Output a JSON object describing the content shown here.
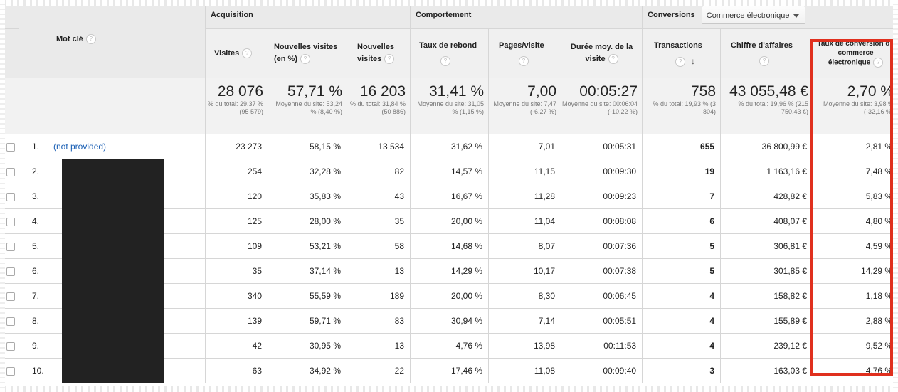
{
  "header": {
    "keyword": "Mot clé",
    "group_acquisition": "Acquisition",
    "group_behavior": "Comportement",
    "group_conversions": "Conversions",
    "conversion_select": "Commerce électronique",
    "col_visits": "Visites",
    "col_new_visits_pct": "Nouvelles visites (en %)",
    "col_new_visits": "Nouvelles visites",
    "col_bounce": "Taux de rebond",
    "col_pages": "Pages/visite",
    "col_duration": "Durée moy. de la visite",
    "col_transactions": "Transactions",
    "col_revenue": "Chiffre d'affaires",
    "col_conv_rate": "Taux de conversion du commerce électronique",
    "help": "?",
    "sort_arrow": "↓"
  },
  "summary": {
    "visits": {
      "value": "28 076",
      "sub": "% du total: 29,37 % (95 579)"
    },
    "new_visits_pct": {
      "value": "57,71 %",
      "sub": "Moyenne du site: 53,24 % (8,40 %)"
    },
    "new_visits": {
      "value": "16 203",
      "sub": "% du total: 31,84 % (50 886)"
    },
    "bounce": {
      "value": "31,41 %",
      "sub": "Moyenne du site: 31,05 % (1,15 %)"
    },
    "pages": {
      "value": "7,00",
      "sub": "Moyenne du site: 7,47 (-6,27 %)"
    },
    "duration": {
      "value": "00:05:27",
      "sub": "Moyenne du site: 00:06:04 (-10,22 %)"
    },
    "transactions": {
      "value": "758",
      "sub": "% du total: 19,93 % (3 804)"
    },
    "revenue": {
      "value": "43 055,48 €",
      "sub": "% du total: 19,96 % (215 750,43 €)"
    },
    "conv_rate": {
      "value": "2,70 %",
      "sub": "Moyenne du site: 3,98 % (-32,16 %)"
    }
  },
  "rows": [
    {
      "idx": "1.",
      "keyword": "(not provided)",
      "visits": "23 273",
      "new_pct": "58,15 %",
      "new": "13 534",
      "bounce": "31,62 %",
      "pages": "7,01",
      "duration": "00:05:31",
      "transactions": "655",
      "revenue": "36 800,99 €",
      "conv": "2,81 %"
    },
    {
      "idx": "2.",
      "keyword": "",
      "visits": "254",
      "new_pct": "32,28 %",
      "new": "82",
      "bounce": "14,57 %",
      "pages": "11,15",
      "duration": "00:09:30",
      "transactions": "19",
      "revenue": "1 163,16 €",
      "conv": "7,48 %"
    },
    {
      "idx": "3.",
      "keyword": "",
      "visits": "120",
      "new_pct": "35,83 %",
      "new": "43",
      "bounce": "16,67 %",
      "pages": "11,28",
      "duration": "00:09:23",
      "transactions": "7",
      "revenue": "428,82 €",
      "conv": "5,83 %"
    },
    {
      "idx": "4.",
      "keyword": "",
      "visits": "125",
      "new_pct": "28,00 %",
      "new": "35",
      "bounce": "20,00 %",
      "pages": "11,04",
      "duration": "00:08:08",
      "transactions": "6",
      "revenue": "408,07 €",
      "conv": "4,80 %"
    },
    {
      "idx": "5.",
      "keyword": "",
      "visits": "109",
      "new_pct": "53,21 %",
      "new": "58",
      "bounce": "14,68 %",
      "pages": "8,07",
      "duration": "00:07:36",
      "transactions": "5",
      "revenue": "306,81 €",
      "conv": "4,59 %"
    },
    {
      "idx": "6.",
      "keyword": "",
      "visits": "35",
      "new_pct": "37,14 %",
      "new": "13",
      "bounce": "14,29 %",
      "pages": "10,17",
      "duration": "00:07:38",
      "transactions": "5",
      "revenue": "301,85 €",
      "conv": "14,29 %"
    },
    {
      "idx": "7.",
      "keyword": "",
      "visits": "340",
      "new_pct": "55,59 %",
      "new": "189",
      "bounce": "20,00 %",
      "pages": "8,30",
      "duration": "00:06:45",
      "transactions": "4",
      "revenue": "158,82 €",
      "conv": "1,18 %"
    },
    {
      "idx": "8.",
      "keyword": "",
      "visits": "139",
      "new_pct": "59,71 %",
      "new": "83",
      "bounce": "30,94 %",
      "pages": "7,14",
      "duration": "00:05:51",
      "transactions": "4",
      "revenue": "155,89 €",
      "conv": "2,88 %"
    },
    {
      "idx": "9.",
      "keyword": "",
      "visits": "42",
      "new_pct": "30,95 %",
      "new": "13",
      "bounce": "4,76 %",
      "pages": "13,98",
      "duration": "00:11:53",
      "transactions": "4",
      "revenue": "239,12 €",
      "conv": "9,52 %"
    },
    {
      "idx": "10.",
      "keyword": "",
      "visits": "63",
      "new_pct": "34,92 %",
      "new": "22",
      "bounce": "17,46 %",
      "pages": "11,08",
      "duration": "00:09:40",
      "transactions": "3",
      "revenue": "163,03 €",
      "conv": "4,76 %"
    }
  ],
  "colors": {
    "highlight": "#e0301e",
    "link": "#1a5fb4",
    "header_bg": "#eaeaea",
    "redaction": "#222222"
  }
}
